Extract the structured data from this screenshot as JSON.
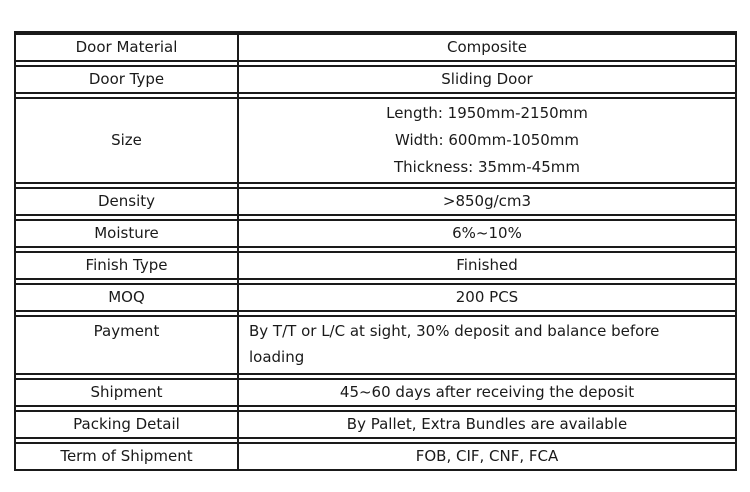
{
  "page": {
    "background_color": "#ffffff"
  },
  "table": {
    "border_color": "#1a1a1a",
    "text_color": "#1a1a1a",
    "rows": [
      {
        "label": "Door Material",
        "value": "Composite"
      },
      {
        "label": "Door Type",
        "value": "Sliding Door"
      },
      {
        "label": "Size",
        "value_lines": [
          "Length: 1950mm-2150mm",
          "Width: 600mm-1050mm",
          "Thickness: 35mm-45mm"
        ]
      },
      {
        "label": "Density",
        "value": ">850g/cm3"
      },
      {
        "label": "Moisture",
        "value": "6%~10%"
      },
      {
        "label": "Finish Type",
        "value": "Finished"
      },
      {
        "label": "MOQ",
        "value": "200 PCS"
      },
      {
        "label": "Payment",
        "value": "By T/T or L/C at sight, 30% deposit and balance before loading",
        "wrap": true
      },
      {
        "label": "Shipment",
        "value": "45~60 days after receiving the deposit"
      },
      {
        "label": "Packing Detail",
        "value": "By Pallet, Extra Bundles are available"
      },
      {
        "label": "Term of Shipment",
        "value": "FOB, CIF, CNF, FCA"
      }
    ]
  }
}
